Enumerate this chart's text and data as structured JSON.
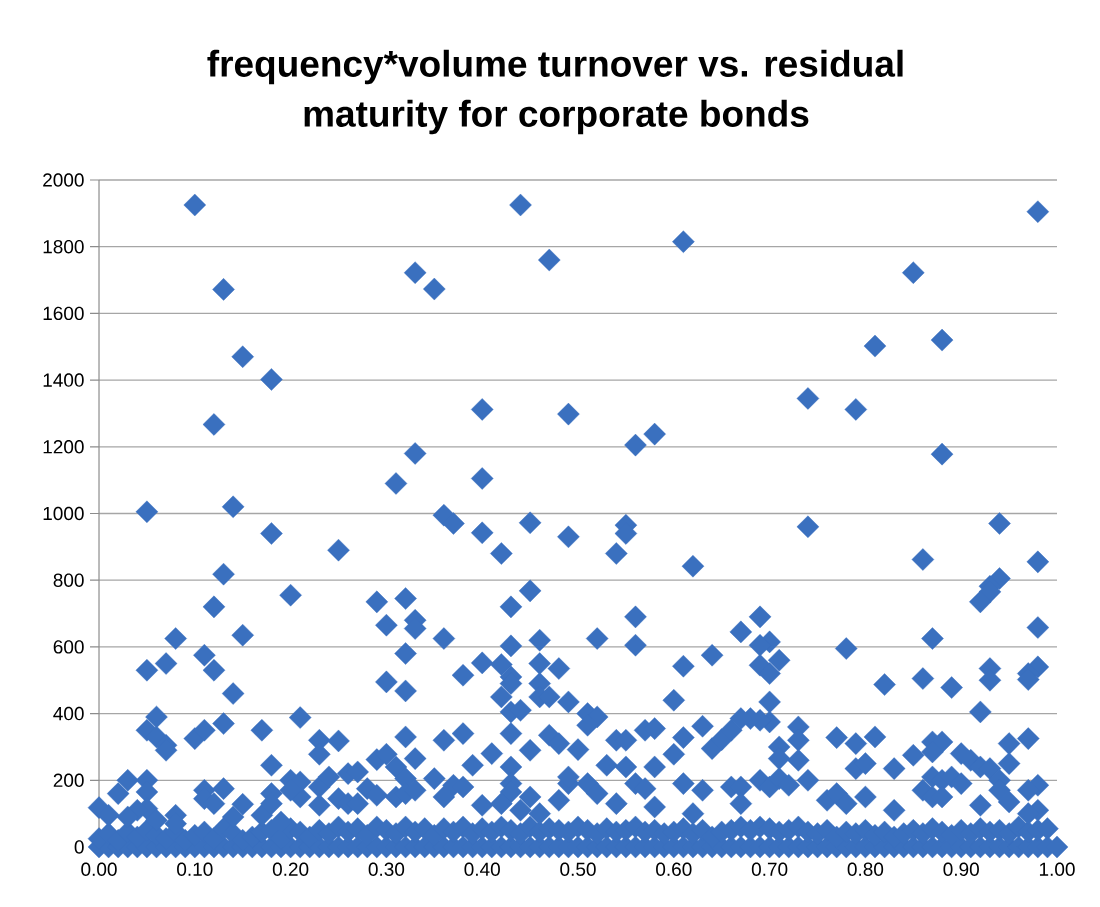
{
  "chart_data": {
    "type": "scatter",
    "title": "frequency*volume turnover vs. residual maturity for corporate bonds",
    "x": [
      0.0,
      0.01,
      0.02,
      0.03,
      0.04,
      0.05,
      0.06,
      0.07,
      0.08,
      0.09,
      0.1,
      0.11,
      0.12,
      0.13,
      0.14,
      0.15,
      0.16,
      0.17,
      0.18,
      0.19,
      0.2,
      0.21,
      0.22,
      0.23,
      0.24,
      0.25,
      0.26,
      0.27,
      0.28,
      0.29,
      0.3,
      0.31,
      0.32,
      0.33,
      0.34,
      0.35,
      0.36,
      0.37,
      0.38,
      0.39,
      0.4,
      0.41,
      0.42,
      0.43,
      0.44,
      0.45,
      0.46,
      0.47,
      0.48,
      0.49,
      0.5,
      0.51,
      0.52,
      0.53,
      0.54,
      0.55,
      0.56,
      0.57,
      0.58,
      0.59,
      0.6,
      0.61,
      0.62,
      0.63,
      0.64,
      0.65,
      0.66,
      0.67,
      0.68,
      0.69,
      0.7,
      0.71,
      0.72,
      0.73,
      0.74,
      0.75,
      0.76,
      0.77,
      0.78,
      0.79,
      0.8,
      0.81,
      0.82,
      0.83,
      0.84,
      0.85,
      0.86,
      0.87,
      0.88,
      0.89,
      0.9,
      0.91,
      0.92,
      0.93,
      0.94,
      0.95,
      0.96,
      0.97,
      0.98,
      0.99,
      1.0,
      0.0,
      0.01,
      0.02,
      0.03,
      0.04,
      0.05,
      0.06,
      0.07,
      0.08,
      0.09,
      0.1,
      0.11,
      0.12,
      0.13,
      0.14,
      0.15,
      0.16,
      0.17,
      0.18,
      0.19,
      0.2,
      0.21,
      0.22,
      0.23,
      0.24,
      0.25,
      0.26,
      0.27,
      0.28,
      0.29,
      0.3,
      0.31,
      0.32,
      0.33,
      0.34,
      0.35,
      0.36,
      0.37,
      0.38,
      0.39,
      0.4,
      0.41,
      0.42,
      0.43,
      0.44,
      0.45,
      0.46,
      0.47,
      0.48,
      0.49,
      0.5,
      0.51,
      0.52,
      0.53,
      0.54,
      0.55,
      0.56,
      0.57,
      0.58,
      0.59,
      0.6,
      0.61,
      0.62,
      0.63,
      0.64,
      0.65,
      0.66,
      0.67,
      0.68,
      0.69,
      0.7,
      0.71,
      0.72,
      0.73,
      0.74,
      0.75,
      0.76,
      0.77,
      0.78,
      0.79,
      0.8,
      0.81,
      0.82,
      0.83,
      0.84,
      0.85,
      0.86,
      0.87,
      0.88,
      0.89,
      0.9,
      0.91,
      0.92,
      0.93,
      0.94,
      0.95,
      0.96,
      0.97,
      0.98,
      0.99,
      0.1,
      0.13,
      0.15,
      0.18,
      0.12,
      0.14,
      0.05,
      0.18,
      0.25,
      0.13,
      0.2,
      0.29,
      0.32,
      0.3,
      0.33,
      0.33,
      0.12,
      0.08,
      0.15,
      0.11,
      0.12,
      0.07,
      0.05,
      0.14,
      0.32,
      0.3,
      0.32,
      0.06,
      0.05,
      0.06,
      0.07,
      0.07,
      0.1,
      0.11,
      0.13,
      0.17,
      0.21,
      0.18,
      0.23,
      0.23,
      0.25,
      0.32,
      0.33,
      0.29,
      0.3,
      0.31,
      0.32,
      0.03,
      0.02,
      0.0,
      0.01,
      0.05,
      0.05,
      0.05,
      0.06,
      0.04,
      0.03,
      0.08,
      0.08,
      0.11,
      0.11,
      0.13,
      0.12,
      0.15,
      0.14,
      0.17,
      0.18,
      0.18,
      0.19,
      0.2,
      0.21,
      0.21,
      0.2,
      0.23,
      0.23,
      0.24,
      0.26,
      0.27,
      0.25,
      0.26,
      0.27,
      0.28,
      0.29,
      0.31,
      0.32,
      0.33,
      0.33,
      0.33,
      0.31,
      0.44,
      0.61,
      0.47,
      0.35,
      0.4,
      0.49,
      0.56,
      0.58,
      0.4,
      0.36,
      0.37,
      0.4,
      0.42,
      0.45,
      0.49,
      0.55,
      0.55,
      0.54,
      0.62,
      0.36,
      0.43,
      0.45,
      0.56,
      0.52,
      0.56,
      0.43,
      0.46,
      0.46,
      0.48,
      0.4,
      0.38,
      0.42,
      0.43,
      0.43,
      0.42,
      0.43,
      0.44,
      0.46,
      0.46,
      0.47,
      0.49,
      0.6,
      0.61,
      0.64,
      0.51,
      0.52,
      0.51,
      0.36,
      0.38,
      0.43,
      0.39,
      0.41,
      0.43,
      0.45,
      0.47,
      0.48,
      0.5,
      0.53,
      0.54,
      0.55,
      0.57,
      0.58,
      0.55,
      0.58,
      0.6,
      0.61,
      0.63,
      0.64,
      0.65,
      0.66,
      0.35,
      0.37,
      0.38,
      0.36,
      0.4,
      0.43,
      0.43,
      0.42,
      0.45,
      0.49,
      0.49,
      0.51,
      0.52,
      0.56,
      0.57,
      0.61,
      0.63,
      0.66,
      0.48,
      0.46,
      0.44,
      0.62,
      0.58,
      0.54,
      0.98,
      0.85,
      0.88,
      0.81,
      0.74,
      0.79,
      0.88,
      0.74,
      0.94,
      0.86,
      0.98,
      0.94,
      0.93,
      0.93,
      0.92,
      0.98,
      0.69,
      0.67,
      0.7,
      0.69,
      0.78,
      0.87,
      0.71,
      0.69,
      0.7,
      0.82,
      0.86,
      0.89,
      0.93,
      0.93,
      0.98,
      0.97,
      0.97,
      0.7,
      0.92,
      0.7,
      0.69,
      0.68,
      0.67,
      0.73,
      0.73,
      0.73,
      0.71,
      0.71,
      0.77,
      0.79,
      0.81,
      0.79,
      0.8,
      0.83,
      0.85,
      0.87,
      0.88,
      0.87,
      0.9,
      0.91,
      0.92,
      0.93,
      0.95,
      0.95,
      0.97,
      0.98,
      0.97,
      0.69,
      0.7,
      0.67,
      0.71,
      0.72,
      0.74,
      0.86,
      0.87,
      0.88,
      0.89,
      0.9,
      0.87,
      0.88,
      0.94,
      0.94,
      0.76,
      0.77,
      0.78,
      0.8,
      0.92,
      0.95,
      0.98,
      0.97,
      0.67,
      0.83
    ],
    "values": [
      0,
      0,
      0,
      0,
      0,
      0,
      0,
      0,
      0,
      0,
      0,
      0,
      0,
      0,
      0,
      0,
      0,
      0,
      0,
      0,
      0,
      0,
      0,
      0,
      0,
      0,
      0,
      0,
      0,
      0,
      0,
      0,
      0,
      0,
      0,
      0,
      0,
      0,
      0,
      0,
      0,
      0,
      0,
      0,
      0,
      0,
      0,
      0,
      0,
      0,
      0,
      0,
      0,
      0,
      0,
      0,
      0,
      0,
      0,
      0,
      0,
      0,
      0,
      0,
      0,
      0,
      0,
      0,
      0,
      0,
      0,
      0,
      0,
      0,
      0,
      0,
      0,
      0,
      0,
      0,
      0,
      0,
      0,
      0,
      0,
      0,
      0,
      0,
      0,
      0,
      0,
      0,
      0,
      0,
      0,
      0,
      0,
      0,
      0,
      0,
      0,
      25,
      40,
      20,
      45,
      30,
      50,
      35,
      25,
      45,
      20,
      35,
      45,
      25,
      55,
      40,
      20,
      30,
      45,
      50,
      25,
      55,
      45,
      30,
      50,
      40,
      60,
      45,
      55,
      35,
      60,
      50,
      40,
      60,
      45,
      55,
      35,
      55,
      45,
      60,
      40,
      55,
      45,
      60,
      50,
      40,
      60,
      45,
      55,
      50,
      45,
      60,
      50,
      40,
      55,
      45,
      50,
      60,
      45,
      50,
      40,
      45,
      55,
      40,
      50,
      30,
      45,
      50,
      60,
      50,
      60,
      55,
      45,
      50,
      60,
      45,
      40,
      50,
      30,
      45,
      40,
      50,
      35,
      45,
      30,
      40,
      50,
      40,
      55,
      45,
      35,
      50,
      40,
      55,
      45,
      50,
      40,
      60,
      45,
      50,
      55,
      1925,
      1672,
      1470,
      1402,
      1267,
      1020,
      1005,
      940,
      890,
      818,
      755,
      735,
      745,
      665,
      680,
      655,
      720,
      625,
      635,
      575,
      530,
      550,
      530,
      460,
      580,
      495,
      468,
      390,
      350,
      330,
      305,
      290,
      325,
      350,
      370,
      350,
      388,
      245,
      320,
      278,
      318,
      330,
      265,
      262,
      278,
      240,
      205,
      200,
      160,
      118,
      95,
      200,
      165,
      115,
      80,
      110,
      90,
      95,
      70,
      170,
      145,
      175,
      130,
      128,
      90,
      95,
      160,
      130,
      75,
      200,
      150,
      195,
      170,
      180,
      125,
      210,
      220,
      225,
      145,
      130,
      130,
      175,
      155,
      150,
      160,
      170,
      1722,
      1180,
      1090,
      1925,
      1815,
      1760,
      1673,
      1312,
      1298,
      1205,
      1238,
      1105,
      995,
      970,
      942,
      880,
      972,
      930,
      965,
      940,
      880,
      842,
      625,
      720,
      768,
      690,
      625,
      605,
      603,
      620,
      550,
      535,
      552,
      515,
      547,
      510,
      490,
      450,
      405,
      410,
      490,
      450,
      450,
      435,
      440,
      542,
      575,
      400,
      390,
      365,
      320,
      340,
      340,
      245,
      280,
      240,
      290,
      335,
      310,
      292,
      245,
      320,
      320,
      350,
      355,
      240,
      240,
      278,
      328,
      362,
      295,
      322,
      350,
      205,
      185,
      180,
      150,
      125,
      190,
      165,
      130,
      150,
      190,
      210,
      190,
      160,
      190,
      175,
      190,
      170,
      180,
      140,
      100,
      110,
      100,
      120,
      130,
      1905,
      1722,
      1520,
      1502,
      1345,
      1312,
      1178,
      960,
      970,
      862,
      855,
      805,
      782,
      765,
      735,
      658,
      690,
      645,
      615,
      605,
      595,
      625,
      560,
      545,
      520,
      487,
      505,
      478,
      535,
      500,
      540,
      520,
      502,
      435,
      405,
      375,
      380,
      385,
      385,
      360,
      320,
      260,
      300,
      265,
      328,
      310,
      330,
      235,
      250,
      235,
      275,
      315,
      315,
      285,
      280,
      260,
      240,
      235,
      310,
      250,
      325,
      185,
      170,
      200,
      180,
      180,
      205,
      185,
      200,
      170,
      210,
      200,
      210,
      190,
      150,
      150,
      200,
      170,
      140,
      160,
      130,
      150,
      125,
      135,
      110,
      100,
      130,
      110
    ],
    "color": "#3a70bf",
    "marker": "diamond",
    "xlim": [
      0,
      1
    ],
    "ylim": [
      0,
      2000
    ],
    "xticks": [
      {
        "value": 0,
        "label": "0.00"
      },
      {
        "value": 0.1,
        "label": "0.10"
      },
      {
        "value": 0.2,
        "label": "0.20"
      },
      {
        "value": 0.3,
        "label": "0.30"
      },
      {
        "value": 0.4,
        "label": "0.40"
      },
      {
        "value": 0.5,
        "label": "0.50"
      },
      {
        "value": 0.6,
        "label": "0.60"
      },
      {
        "value": 0.7,
        "label": "0.70"
      },
      {
        "value": 0.8,
        "label": "0.80"
      },
      {
        "value": 0.9,
        "label": "0.90"
      },
      {
        "value": 1,
        "label": "1.00"
      }
    ],
    "yticks": [
      0,
      200,
      400,
      600,
      800,
      1000,
      1200,
      1400,
      1600,
      1800,
      2000
    ],
    "grid": "y"
  }
}
